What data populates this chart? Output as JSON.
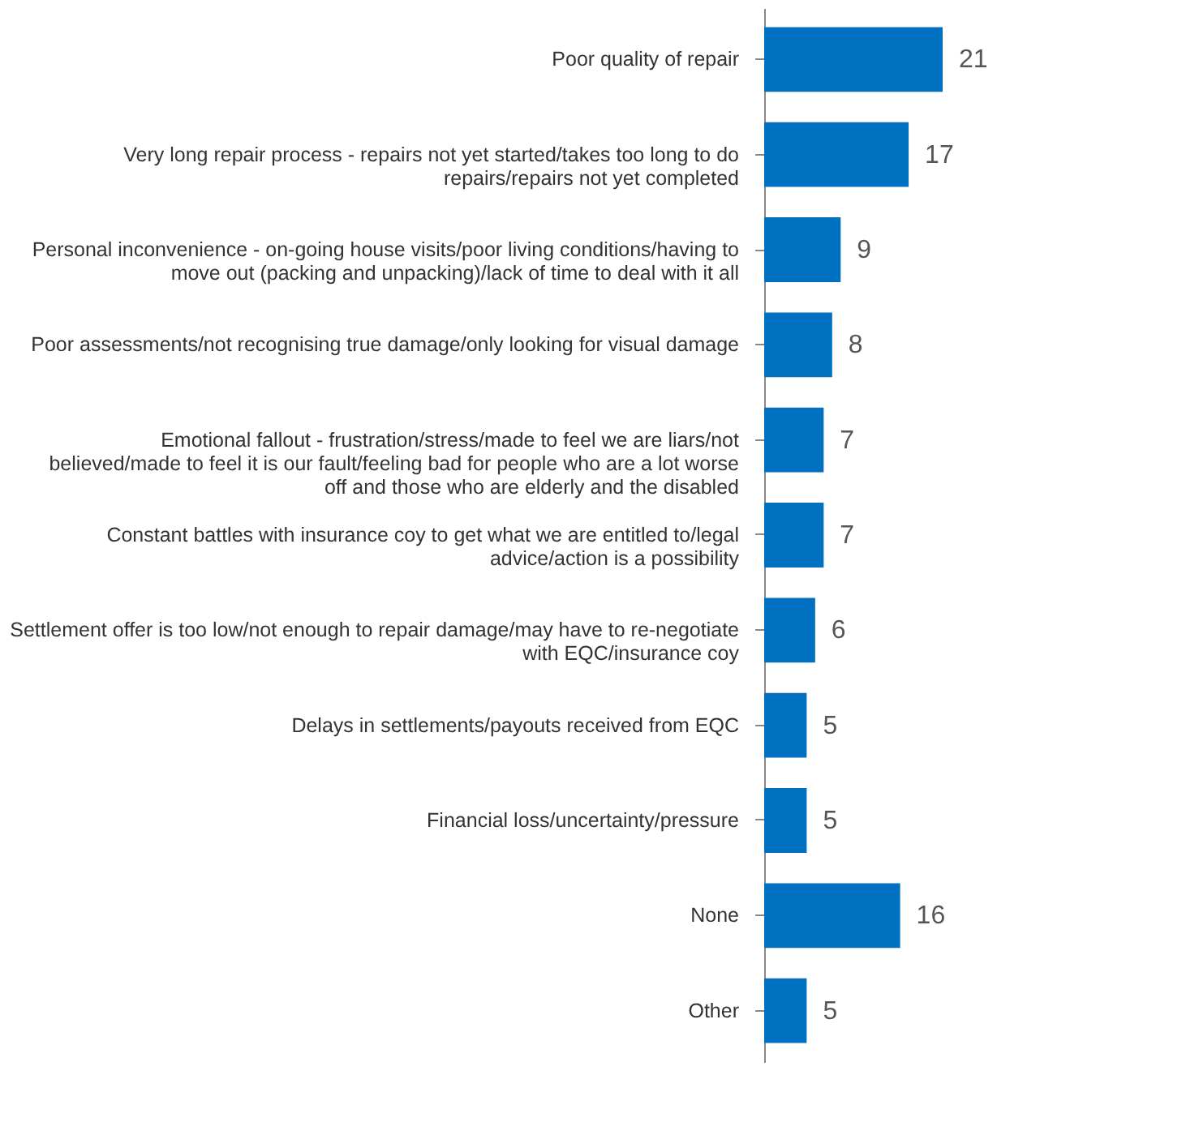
{
  "chart_data": {
    "type": "bar",
    "orientation": "horizontal",
    "data_labels": true,
    "color": "#0070c0",
    "categories": [
      "Poor quality of repair",
      "Very long repair process -  repairs not yet started/takes too long to do repairs/repairs not yet completed",
      "Personal inconvenience - on-going house visits/poor living conditions/having to move out (packing and unpacking)/lack of time to deal with it all",
      "Poor assessments/not recognising true damage/only looking for visual damage",
      "Emotional fallout - frustration/stress/made to feel we are liars/not believed/made to feel it is our fault/feeling bad for people who are a lot worse off and those who are elderly and the disabled",
      "Constant battles with insurance coy to get what we are entitled to/legal advice/action is a possibility",
      "Settlement offer is too low/not enough to repair damage/may have to re-negotiate with EQC/insurance coy",
      "Delays in settlements/payouts received from EQC",
      "Financial loss/uncertainty/pressure",
      "None",
      "Other"
    ],
    "values": [
      21,
      17,
      9,
      8,
      7,
      7,
      6,
      5,
      5,
      16,
      5
    ]
  }
}
